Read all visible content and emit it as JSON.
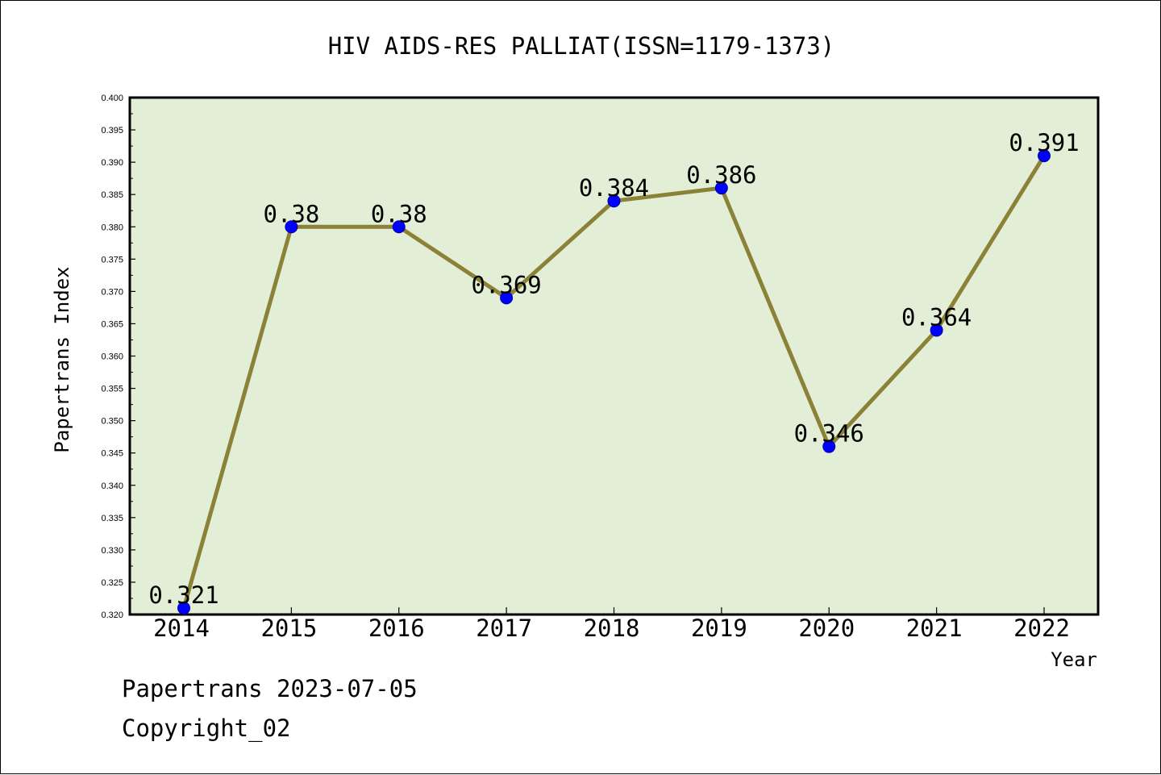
{
  "chart_data": {
    "type": "line",
    "title": "HIV AIDS-RES PALLIAT(ISSN=1179-1373)",
    "xlabel": "Year",
    "ylabel": "Papertrans Index",
    "categories": [
      "2014",
      "2015",
      "2016",
      "2017",
      "2018",
      "2019",
      "2020",
      "2021",
      "2022"
    ],
    "series": [
      {
        "values": [
          0.321,
          0.38,
          0.38,
          0.369,
          0.384,
          0.386,
          0.346,
          0.364,
          0.391
        ],
        "data_labels": [
          "0.321",
          "0.38",
          "0.38",
          "0.369",
          "0.384",
          "0.386",
          "0.346",
          "0.364",
          "0.391"
        ]
      }
    ],
    "ylim": [
      0.32,
      0.4
    ],
    "yticks": [
      "0.320",
      "0.325",
      "0.330",
      "0.335",
      "0.340",
      "0.345",
      "0.350",
      "0.355",
      "0.360",
      "0.365",
      "0.370",
      "0.375",
      "0.380",
      "0.385",
      "0.390",
      "0.395",
      "0.400"
    ],
    "grid": false,
    "legend": "none",
    "colors": {
      "plot_background": "#e2efd6",
      "line": "#8b8238",
      "marker": "#0000ff"
    }
  },
  "footer": {
    "date_line": "Papertrans 2023-07-05",
    "copyright": "Copyright_02"
  }
}
